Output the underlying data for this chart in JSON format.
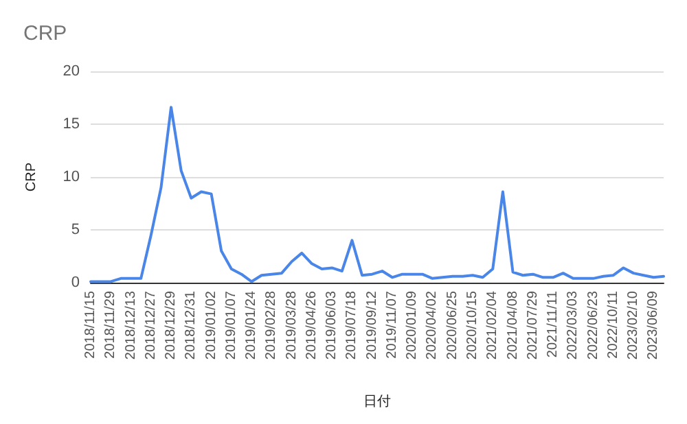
{
  "chart_data": {
    "type": "line",
    "title": "CRP",
    "xlabel": "日付",
    "ylabel": "CRP",
    "categories": [
      "2018/11/15",
      null,
      "2018/11/29",
      null,
      "2018/12/13",
      null,
      "2018/12/27",
      null,
      "2018/12/29",
      null,
      "2018/12/31",
      null,
      "2019/01/02",
      null,
      "2019/01/07",
      null,
      "2019/01/24",
      null,
      "2019/02/28",
      null,
      "2019/03/28",
      null,
      "2019/04/26",
      null,
      "2019/06/03",
      null,
      "2019/07/18",
      null,
      "2019/09/12",
      null,
      "2019/11/07",
      null,
      "2020/01/09",
      null,
      "2020/04/02",
      null,
      "2020/06/25",
      null,
      "2020/10/15",
      null,
      "2021/02/04",
      null,
      "2021/04/08",
      null,
      "2021/07/29",
      null,
      "2021/11/11",
      null,
      "2022/03/03",
      null,
      "2022/06/23",
      null,
      "2022/10/11",
      null,
      "2023/02/10",
      null,
      "2023/06/09",
      null
    ],
    "series": [
      {
        "color": "#4a86e8",
        "values": [
          0.1,
          0.1,
          0.1,
          0.4,
          0.4,
          0.4,
          4.5,
          9,
          16.6,
          10.6,
          8,
          8.6,
          8.4,
          3,
          1.3,
          0.8,
          0.1,
          0.7,
          0.8,
          0.9,
          2,
          2.8,
          1.8,
          1.3,
          1.4,
          1.1,
          4,
          0.7,
          0.8,
          1.1,
          0.5,
          0.8,
          0.8,
          0.8,
          0.4,
          0.5,
          0.6,
          0.6,
          0.7,
          0.5,
          1.3,
          8.6,
          1,
          0.7,
          0.8,
          0.5,
          0.5,
          0.9,
          0.4,
          0.4,
          0.4,
          0.6,
          0.7,
          1.4,
          0.9,
          0.7,
          0.5,
          0.6
        ]
      }
    ],
    "ylim": [
      0,
      20
    ],
    "yticks": [
      0,
      5,
      10,
      15,
      20
    ],
    "grid": "y",
    "marker": "none",
    "line_style": "solid"
  }
}
